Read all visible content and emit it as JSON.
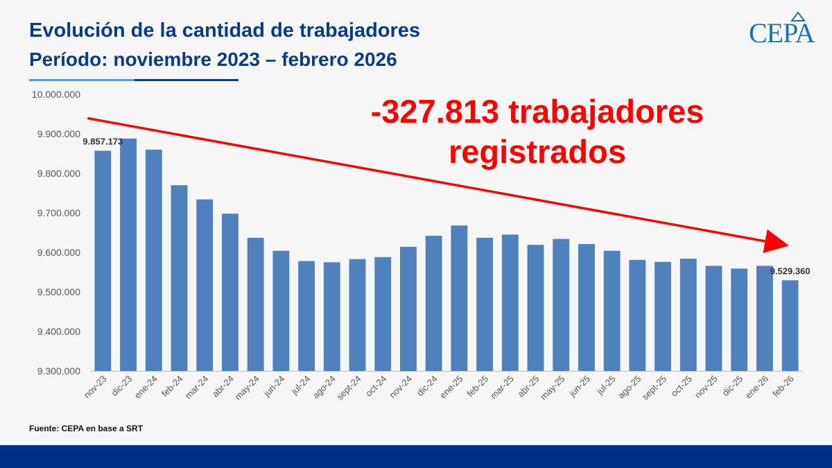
{
  "header": {
    "title": "Evolución de la cantidad de trabajadores",
    "subtitle": "Período: noviembre 2023 – febrero 2026"
  },
  "logo": {
    "text": "CEPA"
  },
  "callout": {
    "line1": "-327.813 trabajadores",
    "line2": "registrados"
  },
  "source": "Fuente: CEPA en base a SRT",
  "colors": {
    "title": "#0b3a87",
    "bar": "#4f81bd",
    "arrow": "#ff0000",
    "callout": "#ff0000",
    "rule_light": "#5b9bd5",
    "rule_dark": "#0b3a87",
    "footer": "#003087",
    "logo": "#1a6fb5"
  },
  "chart_data": {
    "type": "bar",
    "categories": [
      "nov-23",
      "dic-23",
      "ene-24",
      "feb-24",
      "mar-24",
      "abr-24",
      "may-24",
      "jun-24",
      "jul-24",
      "ago-24",
      "sept-24",
      "oct-24",
      "nov-24",
      "dic-24",
      "ene-25",
      "feb-25",
      "mar-25",
      "abr-25",
      "may-25",
      "jun-25",
      "jul-25",
      "ago-25",
      "sept-25",
      "oct-25",
      "nov-25",
      "dic-25",
      "ene-26",
      "feb-26"
    ],
    "values": [
      9857173,
      9888000,
      9860000,
      9770000,
      9734000,
      9698000,
      9637000,
      9604000,
      9578000,
      9575000,
      9583000,
      9588000,
      9614000,
      9642000,
      9668000,
      9637000,
      9645000,
      9619000,
      9634000,
      9621000,
      9604000,
      9581000,
      9576000,
      9584000,
      9566000,
      9559000,
      9566000,
      9529360
    ],
    "data_labels": [
      {
        "index": 0,
        "text": "9.857.173"
      },
      {
        "index": 27,
        "text": "9.529.360"
      }
    ],
    "y_ticks": [
      "9.300.000",
      "9.400.000",
      "9.500.000",
      "9.600.000",
      "9.700.000",
      "9.800.000",
      "9.900.000",
      "10.000.000"
    ],
    "ylim": [
      9300000,
      10000000
    ],
    "trend_arrow": {
      "from": [
        0,
        9950000
      ],
      "to": [
        27,
        9624000
      ]
    },
    "grid": false
  }
}
